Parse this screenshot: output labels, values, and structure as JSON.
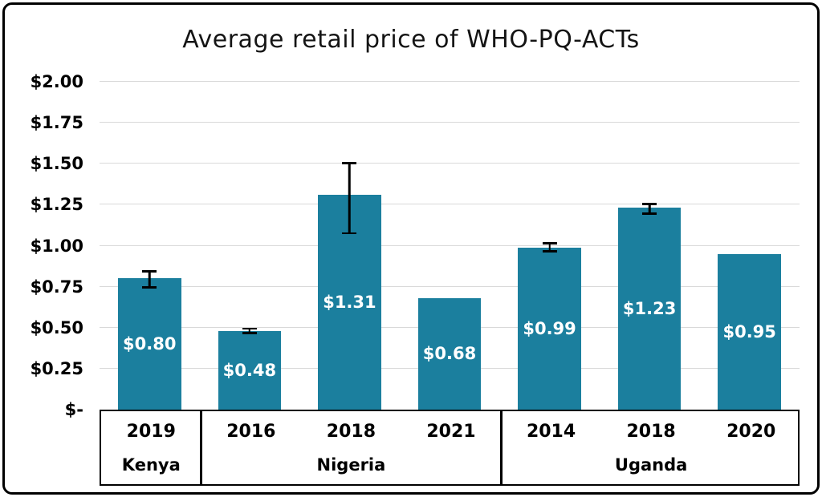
{
  "chart_data": {
    "type": "bar",
    "title": "Average retail price of WHO-PQ-ACTs",
    "xlabel": "",
    "ylabel": "",
    "ylim": [
      0,
      2
    ],
    "ytick_step": 0.25,
    "yticks": [
      "$2.00",
      "$1.75",
      "$1.50",
      "$1.25",
      "$1.00",
      "$0.75",
      "$0.50",
      "$0.25",
      "$-"
    ],
    "bar_color": "#1b7f9e",
    "gridline_color": "#d9d9d9",
    "error_bar_color": "#000000",
    "legend": "none",
    "groups": [
      {
        "country": "Kenya",
        "bars": [
          {
            "year": "2019",
            "value": 0.8,
            "label": "$0.80",
            "err_low": 0.74,
            "err_high": 0.85
          }
        ]
      },
      {
        "country": "Nigeria",
        "bars": [
          {
            "year": "2016",
            "value": 0.48,
            "label": "$0.48",
            "err_low": 0.46,
            "err_high": 0.5
          },
          {
            "year": "2018",
            "value": 1.31,
            "label": "$1.31",
            "err_low": 1.07,
            "err_high": 1.51
          },
          {
            "year": "2021",
            "value": 0.68,
            "label": "$0.68",
            "err_low": null,
            "err_high": null
          }
        ]
      },
      {
        "country": "Uganda",
        "bars": [
          {
            "year": "2014",
            "value": 0.99,
            "label": "$0.99",
            "err_low": 0.96,
            "err_high": 1.02
          },
          {
            "year": "2018",
            "value": 1.23,
            "label": "$1.23",
            "err_low": 1.19,
            "err_high": 1.26
          },
          {
            "year": "2020",
            "value": 0.95,
            "label": "$0.95",
            "err_low": null,
            "err_high": null
          }
        ]
      }
    ]
  }
}
